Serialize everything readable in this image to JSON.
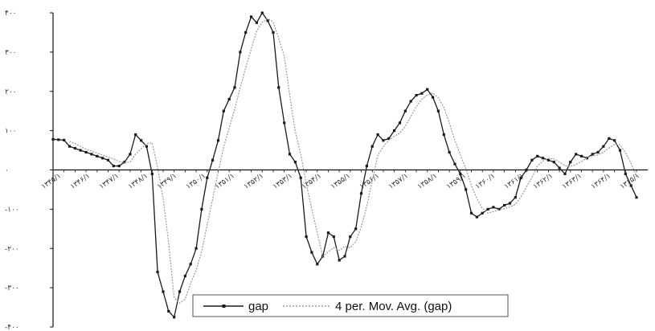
{
  "chart_data": {
    "type": "line",
    "title": "",
    "xlabel": "",
    "ylabel": "",
    "ylim": [
      -400,
      400
    ],
    "yticks": [
      -400,
      -300,
      -200,
      -100,
      0,
      100,
      200,
      300,
      400
    ],
    "ytick_labels": [
      "-۴۰۰",
      "-۳۰۰",
      "-۲۰۰",
      "-۱۰۰",
      "۰",
      "۱۰۰",
      "۲۰۰",
      "۳۰۰",
      "۴۰۰"
    ],
    "grid": false,
    "legend_position": "bottom-center",
    "xtick_labels": [
      "۱۳۴۵/۱",
      "۱۳۴۶/۱",
      "۱۳۴۷/۱",
      "۱۳۴۸/۱",
      "۱۳۴۹/۱",
      "۱۳۵۰/۱",
      "۱۳۵۱/۱",
      "۱۳۵۲/۱",
      "۱۳۵۳/۱",
      "۱۳۵۴/۱",
      "۱۳۵۵/۱",
      "۱۳۵۶/۱",
      "۱۳۵۷/۱",
      "۱۳۵۸/۱",
      "۱۳۵۹/۱",
      "۱۳۶۰/۱",
      "۱۳۶۱/۱",
      "۱۳۶۲/۱",
      "۱۳۶۳/۱",
      "۱۳۶۴/۱",
      "۱۳۶۵/۱"
    ],
    "series": [
      {
        "name": "gap",
        "color": "#1a1a1a",
        "values": [
          78,
          77,
          76,
          60,
          55,
          50,
          45,
          40,
          35,
          30,
          25,
          10,
          10,
          20,
          40,
          90,
          75,
          60,
          -10,
          -260,
          -310,
          -360,
          -375,
          -310,
          -270,
          -240,
          -200,
          -100,
          -20,
          25,
          75,
          150,
          180,
          210,
          300,
          350,
          390,
          375,
          400,
          380,
          350,
          210,
          120,
          40,
          20,
          -20,
          -170,
          -210,
          -240,
          -220,
          -160,
          -170,
          -230,
          -220,
          -170,
          -150,
          -60,
          10,
          60,
          90,
          75,
          80,
          100,
          120,
          150,
          175,
          190,
          195,
          205,
          185,
          150,
          90,
          45,
          15,
          -10,
          -50,
          -110,
          -120,
          -110,
          -100,
          -95,
          -100,
          -90,
          -85,
          -70,
          -20,
          0,
          25,
          35,
          30,
          25,
          20,
          5,
          -10,
          20,
          40,
          35,
          30,
          40,
          45,
          60,
          80,
          75,
          50,
          -10,
          -40,
          -70
        ],
        "markers": true
      },
      {
        "name": "4 per. Mov. Avg. (gap)",
        "color": "#9a9a9a",
        "values": [
          null,
          null,
          null,
          73,
          67,
          60,
          53,
          48,
          43,
          38,
          33,
          28,
          21,
          19,
          20,
          40,
          54,
          67,
          69,
          6,
          -73,
          -185,
          -326,
          -339,
          -329,
          -289,
          -255,
          -208,
          -140,
          -74,
          -5,
          58,
          108,
          154,
          210,
          260,
          308,
          354,
          376,
          386,
          376,
          335,
          290,
          190,
          98,
          40,
          -35,
          -100,
          -160,
          -220,
          -208,
          -198,
          -205,
          -195,
          -198,
          -183,
          -145,
          -92,
          -27,
          38,
          59,
          76,
          86,
          94,
          111,
          136,
          161,
          180,
          191,
          196,
          184,
          159,
          120,
          75,
          38,
          3,
          -39,
          -73,
          -98,
          -110,
          -106,
          -101,
          -99,
          -94,
          -88,
          -69,
          -44,
          -19,
          10,
          23,
          29,
          28,
          20,
          10,
          9,
          14,
          21,
          31,
          36,
          38,
          45,
          56,
          65,
          64,
          44,
          17,
          -18
        ]
      }
    ]
  },
  "legend": {
    "items": [
      {
        "label": "gap",
        "style": "marker-line",
        "color": "#1a1a1a"
      },
      {
        "label": "4 per. Mov. Avg. (gap)",
        "style": "dotted-line",
        "color": "#9a9a9a"
      }
    ]
  }
}
